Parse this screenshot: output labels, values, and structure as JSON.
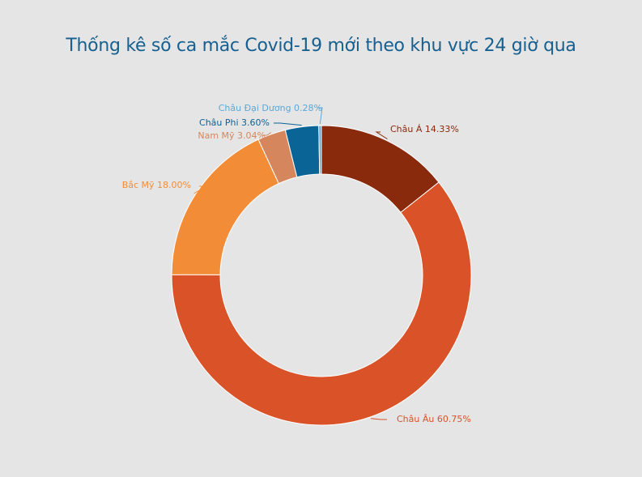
{
  "chart_data": {
    "type": "pie",
    "title": "Thống kê số ca mắc Covid-19 mới theo khu vực 24 giờ qua",
    "donut": true,
    "slices": [
      {
        "label": "Châu Á",
        "value": 14.33,
        "display": "Châu Á 14.33%",
        "color": "#8a2a0c"
      },
      {
        "label": "Châu Âu",
        "value": 60.75,
        "display": "Châu Âu 60.75%",
        "color": "#da5227"
      },
      {
        "label": "Bắc Mỹ",
        "value": 18.0,
        "display": "Bắc Mỹ 18.00%",
        "color": "#f28c36"
      },
      {
        "label": "Nam Mỹ",
        "value": 3.04,
        "display": "Nam Mỹ 3.04%",
        "color": "#d5865c"
      },
      {
        "label": "Châu Phi",
        "value": 3.6,
        "display": "Châu Phi  3.60%",
        "color": "#0b6496"
      },
      {
        "label": "Châu Đại Dương",
        "value": 0.28,
        "display": "Châu Đại Dương 0.28%",
        "color": "#5da8d8"
      }
    ],
    "label_colors": [
      "#8a2a0c",
      "#da5227",
      "#f28c36",
      "#d5865c",
      "#0b6496",
      "#5da8d8"
    ]
  }
}
